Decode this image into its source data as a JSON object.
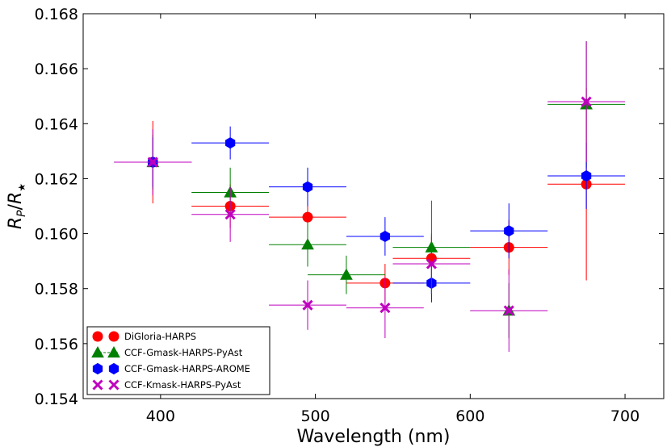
{
  "chart_data": {
    "type": "scatter",
    "xlabel": "Wavelength (nm)",
    "ylabel_math": {
      "base": "R",
      "sub1": "P",
      "slash": "/",
      "base2": "R",
      "sub2": "★"
    },
    "xlim": [
      350,
      725
    ],
    "ylim": [
      0.154,
      0.168
    ],
    "xticks": [
      400,
      500,
      600,
      700
    ],
    "yticks": [
      0.154,
      0.156,
      0.158,
      0.16,
      0.162,
      0.164,
      0.166,
      0.168
    ],
    "ytick_labels": [
      "0.154",
      "0.156",
      "0.158",
      "0.160",
      "0.162",
      "0.164",
      "0.166",
      "0.168"
    ],
    "grid": false,
    "legend_position": "lower-left",
    "series": [
      {
        "name": "DiGloria-HARPS",
        "color": "#ff0000",
        "marker": "circle",
        "points": [
          {
            "x": 395,
            "xerr": 25,
            "y": 0.1626,
            "yerr": 0.0015
          },
          {
            "x": 445,
            "xerr": 25,
            "y": 0.161,
            "yerr": 0.0008
          },
          {
            "x": 495,
            "xerr": 25,
            "y": 0.1606,
            "yerr": 0.0008
          },
          {
            "x": 545,
            "xerr": 25,
            "y": 0.1582,
            "yerr": 0.0007
          },
          {
            "x": 575,
            "xerr": 25,
            "y": 0.1591,
            "yerr": 0.0008
          },
          {
            "x": 625,
            "xerr": 25,
            "y": 0.1595,
            "yerr": 0.001
          },
          {
            "x": 675,
            "xerr": 25,
            "y": 0.1618,
            "yerr": 0.0035
          }
        ]
      },
      {
        "name": "CCF-Gmask-HARPS-PyAst",
        "color": "#008000",
        "marker": "triangle",
        "points": [
          {
            "x": 395,
            "xerr": 25,
            "y": 0.1626,
            "yerr": 0.001
          },
          {
            "x": 445,
            "xerr": 25,
            "y": 0.1615,
            "yerr": 0.0009
          },
          {
            "x": 495,
            "xerr": 25,
            "y": 0.1596,
            "yerr": 0.0008
          },
          {
            "x": 520,
            "xerr": 25,
            "y": 0.1585,
            "yerr": 0.0007
          },
          {
            "x": 575,
            "xerr": 25,
            "y": 0.1595,
            "yerr": 0.0017
          },
          {
            "x": 625,
            "xerr": 25,
            "y": 0.1572,
            "yerr": 0.001
          },
          {
            "x": 675,
            "xerr": 25,
            "y": 0.1647,
            "yerr": 0.0023
          }
        ]
      },
      {
        "name": "CCF-Gmask-HARPS-AROME",
        "color": "#0000ff",
        "marker": "hexagon",
        "points": [
          {
            "x": 395,
            "xerr": 25,
            "y": 0.1626,
            "yerr": 0.0009
          },
          {
            "x": 445,
            "xerr": 25,
            "y": 0.1633,
            "yerr": 0.0006
          },
          {
            "x": 495,
            "xerr": 25,
            "y": 0.1617,
            "yerr": 0.0007
          },
          {
            "x": 545,
            "xerr": 25,
            "y": 0.1599,
            "yerr": 0.0007
          },
          {
            "x": 575,
            "xerr": 25,
            "y": 0.1582,
            "yerr": 0.0007
          },
          {
            "x": 625,
            "xerr": 25,
            "y": 0.1601,
            "yerr": 0.001
          },
          {
            "x": 675,
            "xerr": 25,
            "y": 0.1621,
            "yerr": 0.0012
          }
        ]
      },
      {
        "name": "CCF-Kmask-HARPS-PyAst",
        "color": "#bf00bf",
        "marker": "x",
        "points": [
          {
            "x": 395,
            "xerr": 25,
            "y": 0.1626,
            "yerr": 0.0012
          },
          {
            "x": 445,
            "xerr": 25,
            "y": 0.1607,
            "yerr": 0.001
          },
          {
            "x": 495,
            "xerr": 25,
            "y": 0.1574,
            "yerr": 0.0009
          },
          {
            "x": 545,
            "xerr": 25,
            "y": 0.1573,
            "yerr": 0.0011
          },
          {
            "x": 575,
            "xerr": 25,
            "y": 0.1589,
            "yerr": 0.0011
          },
          {
            "x": 625,
            "xerr": 25,
            "y": 0.1572,
            "yerr": 0.0015
          },
          {
            "x": 675,
            "xerr": 25,
            "y": 0.1648,
            "yerr": 0.0022
          }
        ]
      }
    ]
  }
}
